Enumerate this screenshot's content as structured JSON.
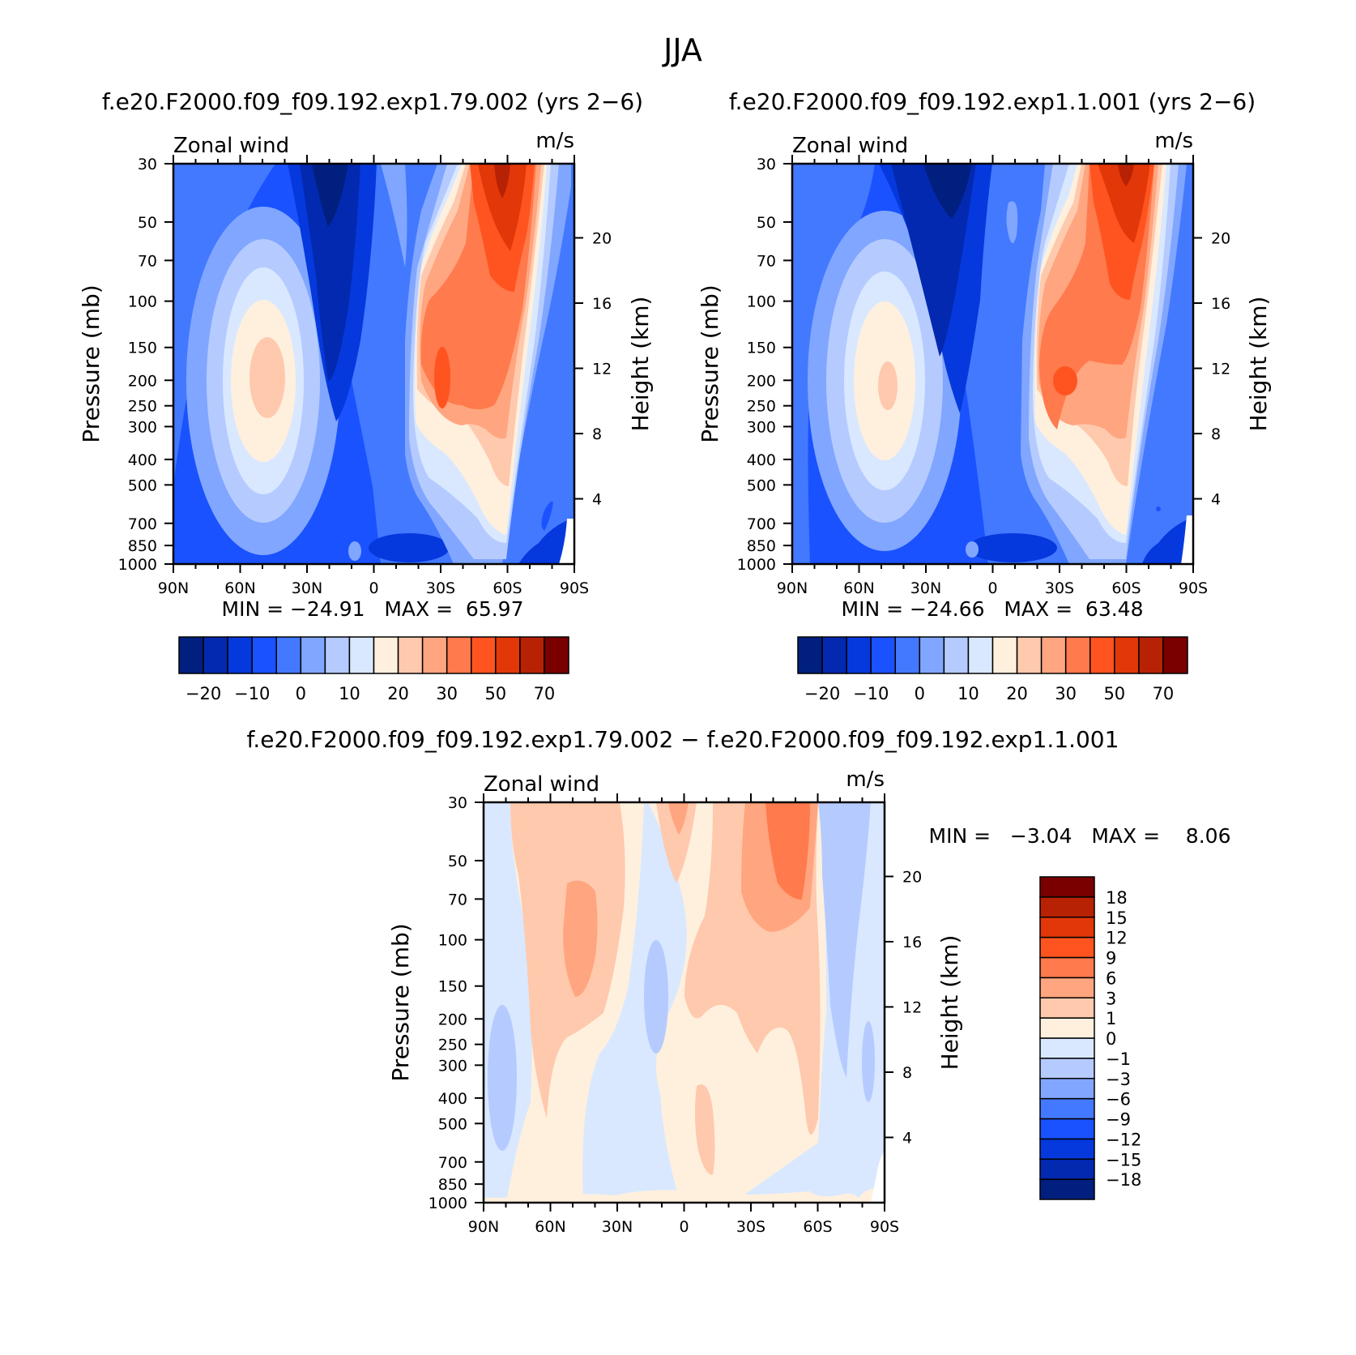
{
  "figure": {
    "title": "JJA",
    "subtitles": [
      "f.e20.F2000.f09_f09.192.exp1.79.002 (yrs 2−6)",
      "f.e20.F2000.f09_f09.192.exp1.1.001 (yrs 2−6)"
    ],
    "diff_title": "f.e20.F2000.f09_f09.192.exp1.79.002 − f.e20.F2000.f09_f09.192.exp1.1.001"
  },
  "colors": {
    "main_scale": [
      "#001f7f",
      "#0229b0",
      "#0539dd",
      "#1a52ff",
      "#4379ff",
      "#81a6ff",
      "#b5cbff",
      "#d9e8ff",
      "#fff0de",
      "#ffc9ad",
      "#ffa57f",
      "#ff7a4c",
      "#ff5420",
      "#e23708",
      "#b82204",
      "#7a0000"
    ],
    "diff_scale": [
      "#001f7f",
      "#0229b0",
      "#0539dd",
      "#1a52ff",
      "#4379ff",
      "#81a6ff",
      "#b5cbff",
      "#d9e8ff",
      "#fff0de",
      "#ffc9ad",
      "#ffa57f",
      "#ff7a4c",
      "#ff5420",
      "#e23708",
      "#b82204",
      "#7a0000"
    ]
  },
  "chart_data": [
    {
      "type": "heatmap",
      "id": "panel1",
      "title": "f.e20.F2000.f09_f09.192.exp1.79.002 (yrs 2−6)",
      "left_label": "Zonal wind",
      "right_label": "m/s",
      "xlabel": "",
      "ylabel": "Pressure (mb)",
      "ylabel_right": "Height (km)",
      "x_range": [
        90,
        -90
      ],
      "y_range": [
        1000,
        30
      ],
      "y_scale": "log",
      "x_ticks": [
        {
          "v": 90,
          "label": "90N"
        },
        {
          "v": 60,
          "label": "60N"
        },
        {
          "v": 30,
          "label": "30N"
        },
        {
          "v": 0,
          "label": "0"
        },
        {
          "v": -30,
          "label": "30S"
        },
        {
          "v": -60,
          "label": "60S"
        },
        {
          "v": -90,
          "label": "90S"
        }
      ],
      "y_ticks": [
        30,
        50,
        70,
        100,
        150,
        200,
        250,
        300,
        400,
        500,
        700,
        850,
        1000
      ],
      "height_ticks": [
        4,
        8,
        12,
        16,
        20
      ],
      "stats": "MIN = −24.91   MAX =  65.97",
      "colorbar_labels": [
        "−20",
        "−10",
        "0",
        "10",
        "20",
        "30",
        "50",
        "70"
      ],
      "contour_levels": [
        -25,
        -20,
        -15,
        -10,
        -5,
        0,
        5,
        10,
        15,
        20,
        25,
        30,
        40,
        50,
        60,
        70
      ],
      "features": [
        {
          "lat": 45,
          "p": 200,
          "value": 18
        },
        {
          "lat": 20,
          "p": 40,
          "value": -24
        },
        {
          "lat": -45,
          "p": 170,
          "value": 44
        },
        {
          "lat": -60,
          "p": 30,
          "value": 64
        }
      ]
    },
    {
      "type": "heatmap",
      "id": "panel2",
      "title": "f.e20.F2000.f09_f09.192.exp1.1.001 (yrs 2−6)",
      "left_label": "Zonal wind",
      "right_label": "m/s",
      "xlabel": "",
      "ylabel": "Pressure (mb)",
      "ylabel_right": "Height (km)",
      "x_range": [
        90,
        -90
      ],
      "y_range": [
        1000,
        30
      ],
      "y_scale": "log",
      "x_ticks": [
        {
          "v": 90,
          "label": "90N"
        },
        {
          "v": 60,
          "label": "60N"
        },
        {
          "v": 30,
          "label": "30N"
        },
        {
          "v": 0,
          "label": "0"
        },
        {
          "v": -30,
          "label": "30S"
        },
        {
          "v": -60,
          "label": "60S"
        },
        {
          "v": -90,
          "label": "90S"
        }
      ],
      "y_ticks": [
        30,
        50,
        70,
        100,
        150,
        200,
        250,
        300,
        400,
        500,
        700,
        850,
        1000
      ],
      "height_ticks": [
        4,
        8,
        12,
        16,
        20
      ],
      "stats": "MIN = −24.66   MAX =  63.48",
      "colorbar_labels": [
        "−20",
        "−10",
        "0",
        "10",
        "20",
        "30",
        "50",
        "70"
      ],
      "contour_levels": [
        -25,
        -20,
        -15,
        -10,
        -5,
        0,
        5,
        10,
        15,
        20,
        25,
        30,
        40,
        50,
        60,
        70
      ],
      "features": [
        {
          "lat": 47,
          "p": 200,
          "value": 16
        },
        {
          "lat": 20,
          "p": 40,
          "value": -24
        },
        {
          "lat": -30,
          "p": 200,
          "value": 42
        },
        {
          "lat": -60,
          "p": 30,
          "value": 62
        }
      ]
    },
    {
      "type": "heatmap",
      "id": "difference",
      "title": "f.e20.F2000.f09_f09.192.exp1.79.002 − f.e20.F2000.f09_f09.192.exp1.1.001",
      "left_label": "Zonal wind",
      "right_label": "m/s",
      "xlabel": "",
      "ylabel": "Pressure (mb)",
      "ylabel_right": "Height (km)",
      "x_range": [
        90,
        -90
      ],
      "y_range": [
        1000,
        30
      ],
      "y_scale": "log",
      "x_ticks": [
        {
          "v": 90,
          "label": "90N"
        },
        {
          "v": 60,
          "label": "60N"
        },
        {
          "v": 30,
          "label": "30N"
        },
        {
          "v": 0,
          "label": "0"
        },
        {
          "v": -30,
          "label": "30S"
        },
        {
          "v": -60,
          "label": "60S"
        },
        {
          "v": -90,
          "label": "90S"
        }
      ],
      "y_ticks": [
        30,
        50,
        70,
        100,
        150,
        200,
        250,
        300,
        400,
        500,
        700,
        850,
        1000
      ],
      "height_ticks": [
        4,
        8,
        12,
        16,
        20
      ],
      "stats": "MIN =   −3.04   MAX =    8.06",
      "colorbar_labels": [
        "18",
        "15",
        "12",
        "9",
        "6",
        "3",
        "1",
        "0",
        "−1",
        "−3",
        "−6",
        "−9",
        "−12",
        "−15",
        "−18"
      ],
      "contour_levels": [
        -18,
        -15,
        -12,
        -9,
        -6,
        -3,
        -1,
        0,
        1,
        3,
        6,
        9,
        12,
        15,
        18
      ],
      "features": [
        {
          "lat": 47,
          "p": 90,
          "value": 5
        },
        {
          "lat": -45,
          "p": 40,
          "value": 8
        },
        {
          "lat": 85,
          "p": 280,
          "value": -3
        },
        {
          "lat": -84,
          "p": 60,
          "value": -2
        }
      ]
    }
  ]
}
